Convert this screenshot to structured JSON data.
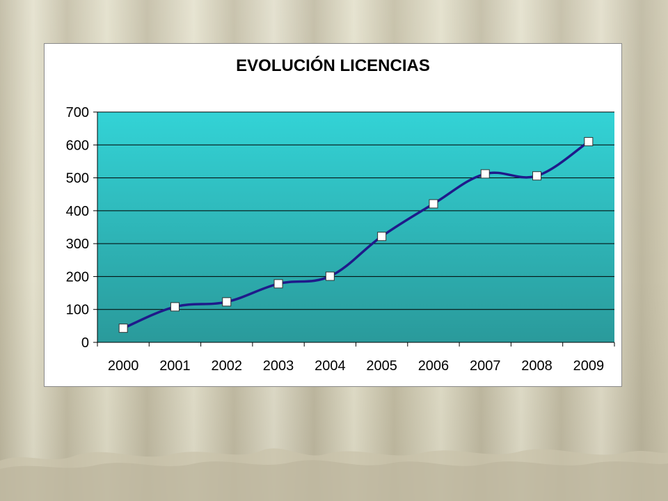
{
  "chart_data": {
    "type": "line",
    "title": "EVOLUCIÓN LICENCIAS",
    "categories": [
      "2000",
      "2001",
      "2002",
      "2003",
      "2004",
      "2005",
      "2006",
      "2007",
      "2008",
      "2009"
    ],
    "series": [
      {
        "values": [
          43,
          108,
          123,
          178,
          201,
          322,
          421,
          512,
          506,
          610
        ],
        "color": "#1f1a8a"
      }
    ],
    "ylim": [
      0,
      700
    ],
    "yticks": [
      "0",
      "100",
      "200",
      "300",
      "400",
      "500",
      "600",
      "700"
    ],
    "grid": true,
    "legend": "none",
    "plot_colors": {
      "top": "#33d3d6",
      "bottom": "#2a9a9b",
      "marker_fill": "#ffffff"
    }
  }
}
